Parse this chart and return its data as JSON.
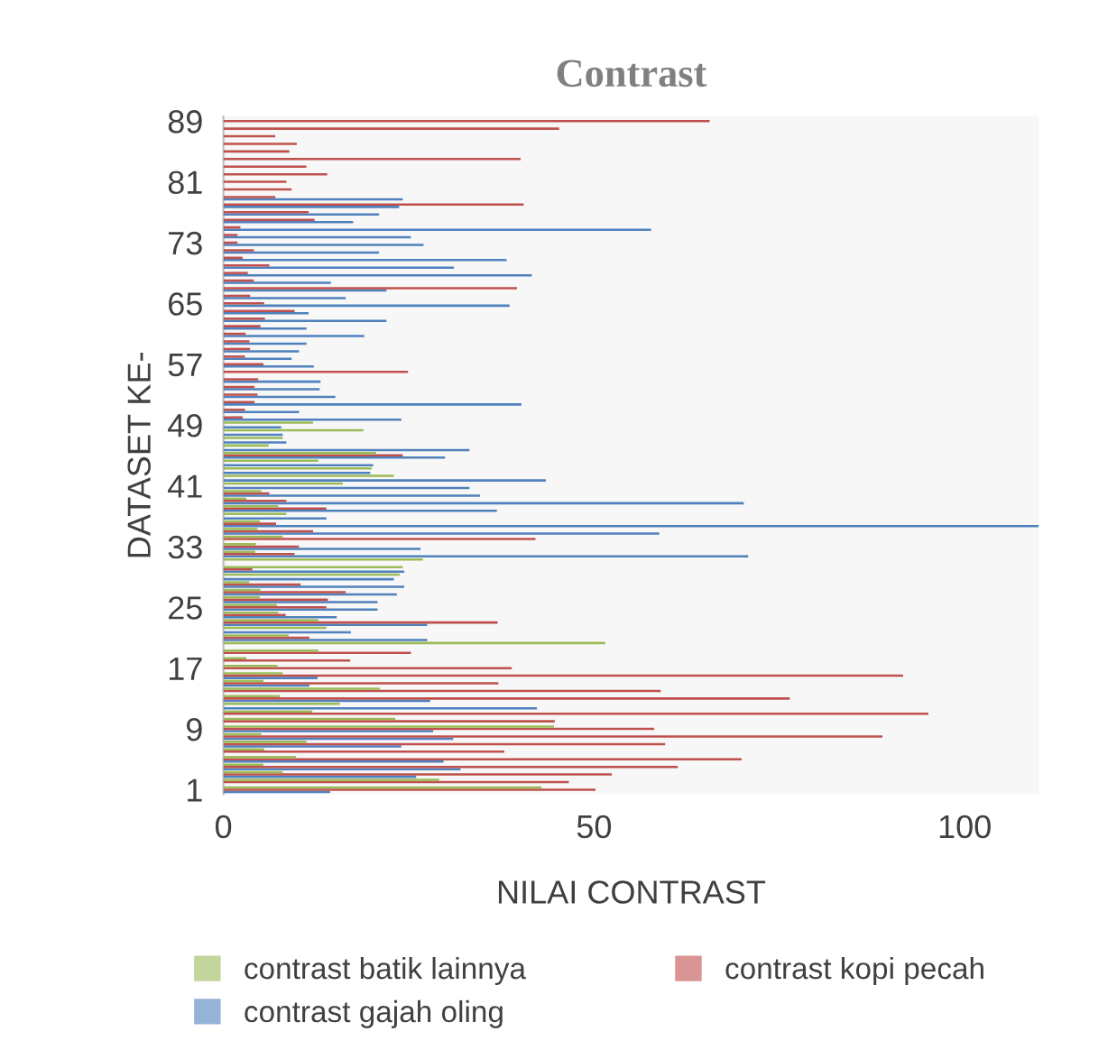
{
  "chart_data": {
    "type": "bar",
    "orientation": "horizontal",
    "title": "Contrast",
    "xlabel": "NILAI CONTRAST",
    "ylabel": "DATASET KE-",
    "categories": [
      "89",
      null,
      null,
      null,
      null,
      null,
      null,
      null,
      "81",
      null,
      null,
      null,
      null,
      null,
      null,
      null,
      "73",
      null,
      null,
      null,
      null,
      null,
      null,
      null,
      "65",
      null,
      null,
      null,
      null,
      null,
      null,
      null,
      "57",
      null,
      null,
      null,
      null,
      null,
      null,
      null,
      "49",
      null,
      null,
      null,
      null,
      null,
      null,
      null,
      "41",
      null,
      null,
      null,
      null,
      null,
      null,
      null,
      "33",
      null,
      null,
      null,
      null,
      null,
      null,
      null,
      "25",
      null,
      null,
      null,
      null,
      null,
      null,
      null,
      "17",
      null,
      null,
      null,
      null,
      null,
      null,
      null,
      "9",
      null,
      null,
      null,
      null,
      null,
      null,
      null,
      "1"
    ],
    "series": [
      {
        "name": "contrast batik lainnya",
        "color": "#9bbb59",
        "values": [
          null,
          null,
          null,
          null,
          null,
          null,
          null,
          null,
          null,
          null,
          null,
          null,
          null,
          null,
          null,
          null,
          null,
          null,
          null,
          null,
          null,
          null,
          null,
          null,
          null,
          null,
          null,
          null,
          null,
          null,
          null,
          null,
          null,
          null,
          null,
          null,
          null,
          null,
          null,
          null,
          12.1,
          18.9,
          8.0,
          6.1,
          20.6,
          12.8,
          20.0,
          23.0,
          16.1,
          5.1,
          3.1,
          7.4,
          8.5,
          4.9,
          4.6,
          8.0,
          4.4,
          4.3,
          26.9,
          24.2,
          23.8,
          3.5,
          5.0,
          4.9,
          7.2,
          7.4,
          12.8,
          13.9,
          8.8,
          51.5,
          12.8,
          3.1,
          7.3,
          8.0,
          5.4,
          21.1,
          7.6,
          15.7,
          12.0,
          23.2,
          44.6,
          5.1,
          11.2,
          5.5,
          9.8,
          5.4,
          8.0,
          29.1,
          42.9
        ]
      },
      {
        "name": "contrast kopi pecah",
        "color": "#c0504d",
        "values": [
          65.6,
          45.3,
          7.0,
          9.9,
          8.9,
          40.1,
          11.2,
          14.0,
          8.5,
          9.2,
          7.0,
          40.5,
          11.5,
          12.3,
          2.3,
          1.9,
          1.9,
          4.1,
          2.6,
          6.2,
          3.3,
          4.1,
          39.6,
          3.6,
          5.5,
          9.6,
          5.6,
          5.0,
          3.0,
          3.5,
          3.6,
          2.9,
          5.4,
          24.9,
          4.7,
          4.2,
          4.6,
          4.2,
          2.9,
          2.6,
          null,
          null,
          null,
          null,
          24.2,
          null,
          null,
          null,
          null,
          6.2,
          8.5,
          13.9,
          null,
          7.1,
          12.1,
          42.1,
          10.2,
          9.6,
          null,
          3.9,
          null,
          10.4,
          16.5,
          14.1,
          13.9,
          8.4,
          37.0,
          null,
          11.6,
          null,
          25.3,
          17.1,
          38.9,
          91.7,
          37.1,
          59.0,
          76.4,
          null,
          95.1,
          44.7,
          58.1,
          88.9,
          59.6,
          37.9,
          69.9,
          61.3,
          52.4,
          46.6,
          50.2
        ]
      },
      {
        "name": "contrast gajah oling",
        "color": "#4f81bd",
        "values": [
          null,
          null,
          null,
          null,
          null,
          null,
          null,
          null,
          null,
          null,
          24.2,
          23.7,
          21.0,
          17.5,
          57.7,
          25.3,
          27.0,
          21.0,
          38.2,
          31.1,
          41.6,
          14.5,
          22.0,
          16.5,
          38.6,
          11.5,
          22.0,
          11.2,
          19.0,
          11.2,
          10.2,
          9.2,
          12.2,
          null,
          13.1,
          13.0,
          15.1,
          40.2,
          10.2,
          24.0,
          7.8,
          8.0,
          8.5,
          33.2,
          29.9,
          20.2,
          19.8,
          43.5,
          33.2,
          34.6,
          70.2,
          36.9,
          13.9,
          110,
          58.8,
          null,
          26.6,
          70.8,
          null,
          24.4,
          23.0,
          24.4,
          23.4,
          20.8,
          20.8,
          15.3,
          27.5,
          17.2,
          27.5,
          null,
          null,
          null,
          null,
          12.7,
          11.6,
          null,
          27.9,
          42.3,
          null,
          null,
          28.3,
          31.0,
          24.0,
          null,
          29.7,
          32.0,
          26.0,
          null,
          14.4
        ]
      }
    ],
    "xlim": [
      0,
      110
    ],
    "xticks": [
      0,
      50,
      100
    ],
    "grid": false,
    "legend": "bottom"
  }
}
